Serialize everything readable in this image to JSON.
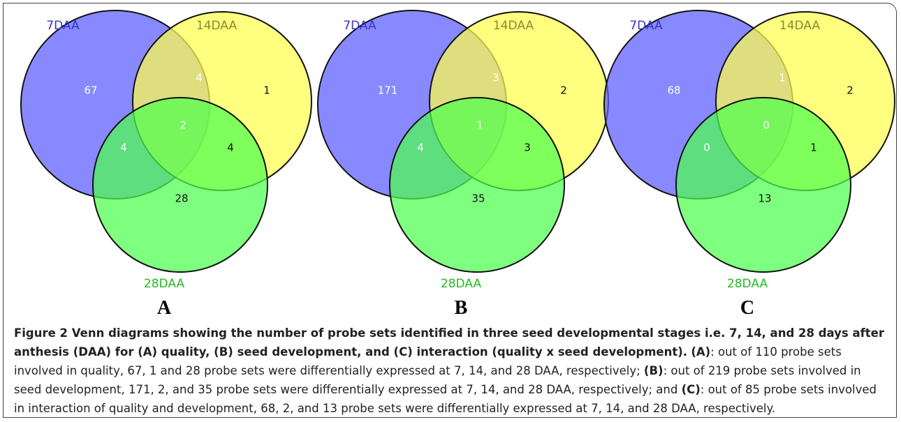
{
  "panels": [
    {
      "label": "A",
      "sets": [
        "7DAA",
        "14DAA",
        "28DAA"
      ],
      "counts": [
        67,
        4,
        1,
        2,
        4,
        4,
        28
      ]
    },
    {
      "label": "B",
      "sets": [
        "7DAA",
        "14DAA",
        "28DAA"
      ],
      "counts": [
        171,
        3,
        2,
        1,
        4,
        3,
        35
      ]
    },
    {
      "label": "C",
      "sets": [
        "7DAA",
        "14DAA",
        "28DAA"
      ],
      "counts": [
        68,
        1,
        2,
        0,
        0,
        1,
        13
      ]
    }
  ],
  "caption": {
    "figure": "Figure 2",
    "title": "Venn diagrams showing the number of probe sets identified in three seed developmental stages i.e. 7, 14, and 28 days after anthesis (DAA) for (A) quality, (B) seed development, and (C) interaction (quality x seed development).",
    "parts": [
      {
        "label": "(A)",
        "text": ": out of 110 probe sets involved in quality, 67, 1 and 28 probe sets were differentially expressed at 7, 14, and 28 DAA, respectively; "
      },
      {
        "label": "(B)",
        "text": ": out of 219 probe sets involved in seed development, 171, 2, and 35 probe sets were differentially expressed at 7, 14, and 28 DAA, respectively; and "
      },
      {
        "label": "(C)",
        "text": ": out of 85 probe sets involved in interaction of quality and development, 68, 2, and 13 probe sets were differentially expressed at 7, 14, and 28 DAA, respectively."
      }
    ]
  }
}
